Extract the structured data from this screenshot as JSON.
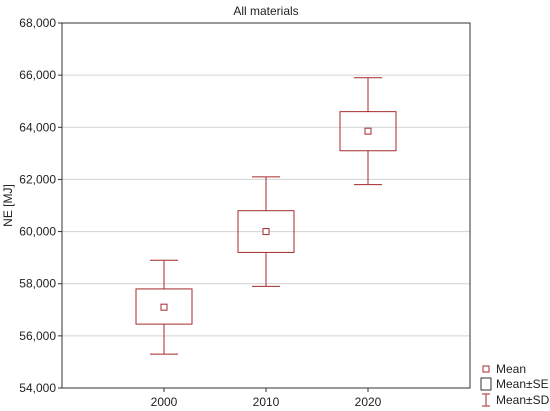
{
  "chart_data": {
    "type": "box",
    "title": "All materials",
    "xlabel": "",
    "ylabel": "NE [MJ]",
    "categories": [
      "2000",
      "2010",
      "2020"
    ],
    "series": [
      {
        "name": "Mean",
        "values": [
          57100,
          60000,
          63850
        ]
      }
    ],
    "se_low": [
      56450,
      59200,
      63100
    ],
    "se_high": [
      57800,
      60800,
      64600
    ],
    "sd_low": [
      55300,
      57900,
      61800
    ],
    "sd_high": [
      58900,
      62100,
      65900
    ],
    "ylim": [
      54000,
      68000
    ],
    "yticks": [
      54000,
      56000,
      58000,
      60000,
      62000,
      64000,
      66000,
      68000
    ],
    "ytick_labels": [
      "54,000",
      "56,000",
      "58,000",
      "60,000",
      "62,000",
      "64,000",
      "66,000",
      "68,000"
    ],
    "grid": true,
    "legend_position": "bottom-right",
    "legend": [
      {
        "symbol": "mean-marker",
        "label": "Mean"
      },
      {
        "symbol": "se-box",
        "label": "Mean±SE"
      },
      {
        "symbol": "sd-whisker",
        "label": "Mean±SD"
      }
    ],
    "colors": {
      "series": "#a52a2a",
      "grid": "#d3d3d3",
      "axis": "#333333"
    }
  }
}
